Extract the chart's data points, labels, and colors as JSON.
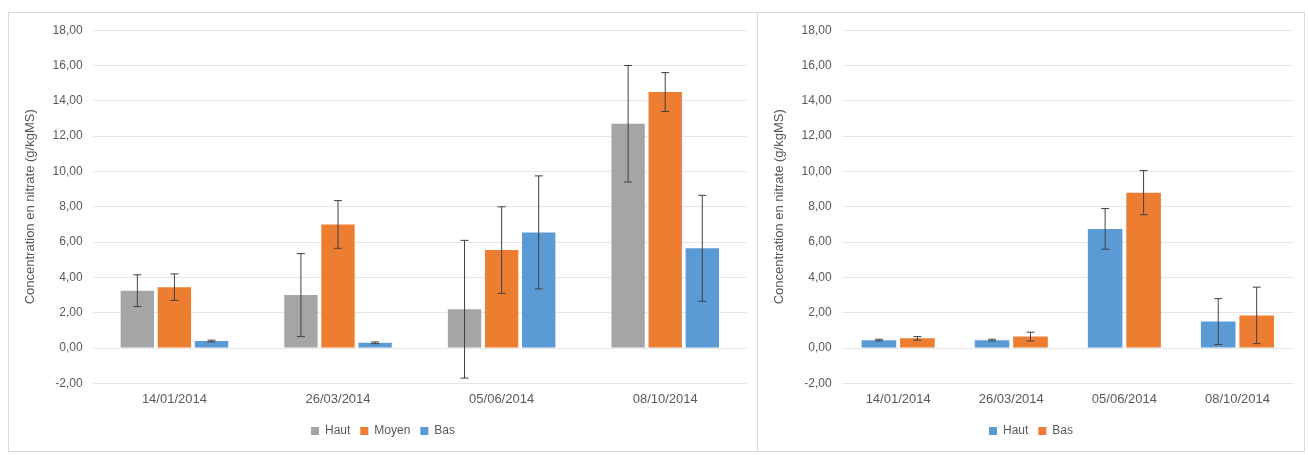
{
  "chart_data": [
    {
      "type": "bar",
      "ylabel": "Concentration en nitrate (g/kgMS)",
      "categories": [
        "14/01/2014",
        "26/03/2014",
        "05/06/2014",
        "08/10/2014"
      ],
      "series": [
        {
          "name": "Haut",
          "color": "#a5a5a5",
          "values": [
            3.25,
            3.0,
            2.2,
            12.7
          ],
          "errors": [
            0.9,
            2.35,
            3.9,
            3.3
          ]
        },
        {
          "name": "Moyen",
          "color": "#ed7d31",
          "values": [
            3.45,
            7.0,
            5.55,
            14.5
          ],
          "errors": [
            0.75,
            1.35,
            2.45,
            1.1
          ]
        },
        {
          "name": "Bas",
          "color": "#5b9bd5",
          "values": [
            0.4,
            0.3,
            6.55,
            5.65
          ],
          "errors": [
            0.05,
            0.05,
            3.2,
            3.0
          ]
        }
      ],
      "ylim": [
        -2,
        18
      ],
      "yticks": [
        {
          "value": -2,
          "label": "-2,00"
        },
        {
          "value": 0,
          "label": "0,00"
        },
        {
          "value": 2,
          "label": "2,00"
        },
        {
          "value": 4,
          "label": "4,00"
        },
        {
          "value": 6,
          "label": "6,00"
        },
        {
          "value": 8,
          "label": "8,00"
        },
        {
          "value": 10,
          "label": "10,00"
        },
        {
          "value": 12,
          "label": "12,00"
        },
        {
          "value": 14,
          "label": "14,00"
        },
        {
          "value": 16,
          "label": "16,00"
        },
        {
          "value": 18,
          "label": "18,00"
        }
      ],
      "grid": "y",
      "legend": "bottom"
    },
    {
      "type": "bar",
      "ylabel": "Concentration en nitrate (g/kgMS)",
      "categories": [
        "14/01/2014",
        "26/03/2014",
        "05/06/2014",
        "08/10/2014"
      ],
      "series": [
        {
          "name": "Haut",
          "color": "#5b9bd5",
          "values": [
            0.45,
            0.45,
            6.75,
            1.5
          ],
          "errors": [
            0.05,
            0.05,
            1.15,
            1.3
          ]
        },
        {
          "name": "Bas",
          "color": "#ed7d31",
          "values": [
            0.55,
            0.65,
            8.8,
            1.85
          ],
          "errors": [
            0.1,
            0.25,
            1.25,
            1.6
          ]
        }
      ],
      "ylim": [
        -2,
        18
      ],
      "yticks": [
        {
          "value": -2,
          "label": "-2,00"
        },
        {
          "value": 0,
          "label": "0,00"
        },
        {
          "value": 2,
          "label": "2,00"
        },
        {
          "value": 4,
          "label": "4,00"
        },
        {
          "value": 6,
          "label": "6,00"
        },
        {
          "value": 8,
          "label": "8,00"
        },
        {
          "value": 10,
          "label": "10,00"
        },
        {
          "value": 12,
          "label": "12,00"
        },
        {
          "value": 14,
          "label": "14,00"
        },
        {
          "value": 16,
          "label": "16,00"
        },
        {
          "value": 18,
          "label": "18,00"
        }
      ],
      "grid": "y",
      "legend": "bottom"
    }
  ]
}
